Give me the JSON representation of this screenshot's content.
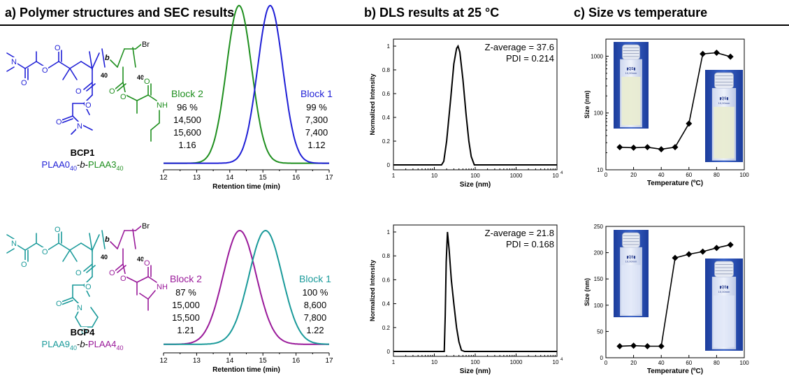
{
  "headers": {
    "a": "a) Polymer structures and SEC results",
    "b": "b) DLS results at 25 °C",
    "c": "c) Size vs temperature"
  },
  "structures": [
    {
      "name": "BCP1",
      "label_parts": [
        "PLAA0",
        "40",
        "-",
        "b",
        "-",
        "PLAA3",
        "40"
      ],
      "block1_color": "#1f1fd6",
      "block2_color": "#1f8f1f",
      "block_letter": "b",
      "dp_left": "40",
      "dp_right": "40",
      "end_group": "Br",
      "amide_label": "NH"
    },
    {
      "name": "BCP4",
      "label_parts": [
        "PLAA9",
        "40",
        "-",
        "b",
        "-",
        "PLAA4",
        "40"
      ],
      "block1_color": "#1a9a9a",
      "block2_color": "#9a1a9a",
      "block_letter": "b",
      "dp_left": "40",
      "dp_right": "40",
      "end_group": "Br",
      "amide_label": "NH"
    }
  ],
  "chart_data": [
    {
      "type": "line",
      "panel": "SEC BCP1",
      "xlabel": "Retention time (min)",
      "ylabel": "",
      "xlim": [
        12,
        17
      ],
      "xticks": [
        "12",
        "13",
        "14",
        "15",
        "16",
        "17"
      ],
      "series": [
        {
          "name": "Block 2",
          "color": "#1f8f1f",
          "peak": 14.28,
          "width": 0.38,
          "baseline": 0.04
        },
        {
          "name": "Block 1",
          "color": "#1f1fd6",
          "peak": 15.22,
          "width": 0.38,
          "baseline": 0.04
        }
      ],
      "tables": [
        {
          "title": "Block 2",
          "color": "#1f8f1f",
          "rows": [
            "96 %",
            "14,500",
            "15,600",
            "1.16"
          ]
        },
        {
          "title": "Block 1",
          "color": "#1f1fd6",
          "rows": [
            "99 %",
            "7,300",
            "7,400",
            "1.12"
          ]
        }
      ]
    },
    {
      "type": "line",
      "panel": "SEC BCP4",
      "xlabel": "Retention time (min)",
      "ylabel": "",
      "xlim": [
        12,
        17
      ],
      "xticks": [
        "12",
        "13",
        "14",
        "15",
        "16",
        "17"
      ],
      "series": [
        {
          "name": "Block 2",
          "color": "#9a1a9a",
          "peak": 14.3,
          "width": 0.5,
          "baseline": 0.07
        },
        {
          "name": "Block 1",
          "color": "#1a9a9a",
          "peak": 15.08,
          "width": 0.5,
          "baseline": 0.07
        }
      ],
      "tables": [
        {
          "title": "Block 2",
          "color": "#9a1a9a",
          "rows": [
            "87 %",
            "15,000",
            "15,500",
            "1.21"
          ]
        },
        {
          "title": "Block 1",
          "color": "#1a9a9a",
          "rows": [
            "100 %",
            "8,600",
            "7,800",
            "1.22"
          ]
        }
      ]
    },
    {
      "type": "line",
      "panel": "DLS BCP1",
      "xlabel": "Size (nm)",
      "ylabel": "Normalized Intensity",
      "xscale": "log",
      "xlim": [
        1,
        10000
      ],
      "ylim": [
        0,
        1
      ],
      "xticks": [
        "1",
        "10",
        "100",
        "1000",
        "10"
      ],
      "yticks": [
        "0",
        "0.2",
        "0.4",
        "0.6",
        "0.8",
        "1"
      ],
      "annotations": [
        "Z-average = 37.6",
        "PDI = 0.214"
      ],
      "series": [
        {
          "name": "",
          "color": "#000000",
          "points": [
            [
              1,
              0
            ],
            [
              15,
              0
            ],
            [
              17,
              0.03
            ],
            [
              20,
              0.2
            ],
            [
              25,
              0.55
            ],
            [
              30,
              0.85
            ],
            [
              35,
              0.98
            ],
            [
              38,
              1.0
            ],
            [
              42,
              0.95
            ],
            [
              50,
              0.72
            ],
            [
              60,
              0.42
            ],
            [
              70,
              0.2
            ],
            [
              80,
              0.07
            ],
            [
              95,
              0
            ],
            [
              10000,
              0
            ]
          ]
        }
      ]
    },
    {
      "type": "line",
      "panel": "DLS BCP4",
      "xlabel": "Size (nm)",
      "ylabel": "Normalized Intensity",
      "xscale": "log",
      "xlim": [
        1,
        10000
      ],
      "ylim": [
        0,
        1
      ],
      "xticks": [
        "1",
        "10",
        "100",
        "1000",
        "10"
      ],
      "yticks": [
        "0",
        "0.2",
        "0.4",
        "0.6",
        "0.8",
        "1"
      ],
      "annotations": [
        "Z-average = 21.8",
        "PDI = 0.168"
      ],
      "series": [
        {
          "name": "",
          "color": "#000000",
          "points": [
            [
              1,
              0
            ],
            [
              17.5,
              0
            ],
            [
              18.5,
              0.3
            ],
            [
              19.5,
              0.75
            ],
            [
              21,
              1.0
            ],
            [
              23,
              0.85
            ],
            [
              26,
              0.6
            ],
            [
              30,
              0.4
            ],
            [
              35,
              0.2
            ],
            [
              40,
              0.08
            ],
            [
              46,
              0.01
            ],
            [
              55,
              0
            ],
            [
              10000,
              0
            ]
          ]
        }
      ]
    },
    {
      "type": "line",
      "panel": "Size vs temperature BCP1",
      "xlabel": "Temperature (ºC)",
      "ylabel": "Size (nm)",
      "yscale": "log",
      "xlim": [
        0,
        100
      ],
      "ylim": [
        10,
        2000
      ],
      "xticks": [
        "0",
        "20",
        "40",
        "60",
        "80",
        "100"
      ],
      "yticks": [
        "10",
        "100",
        "1000"
      ],
      "series": [
        {
          "name": "",
          "color": "#000000",
          "marker": "diamond",
          "x": [
            10,
            20,
            30,
            40,
            50,
            60,
            70,
            80,
            90
          ],
          "y": [
            25,
            24.5,
            25,
            23,
            25,
            65,
            1100,
            1150,
            980
          ]
        }
      ],
      "vial_labels": [
        "▮QS▮",
        "10,00mm"
      ]
    },
    {
      "type": "line",
      "panel": "Size vs temperature BCP4",
      "xlabel": "Temperature (ºC)",
      "ylabel": "Size (nm)",
      "xlim": [
        0,
        100
      ],
      "ylim": [
        0,
        250
      ],
      "xticks": [
        "0",
        "20",
        "40",
        "60",
        "80",
        "100"
      ],
      "yticks": [
        "0",
        "50",
        "100",
        "150",
        "200",
        "250"
      ],
      "series": [
        {
          "name": "",
          "color": "#000000",
          "marker": "diamond",
          "x": [
            10,
            20,
            30,
            40,
            50,
            60,
            70,
            80,
            90
          ],
          "y": [
            22,
            23,
            22,
            22,
            190,
            197,
            202,
            209,
            215
          ]
        }
      ],
      "vial_labels": [
        "▮QS▮",
        "10,00mm"
      ]
    }
  ]
}
